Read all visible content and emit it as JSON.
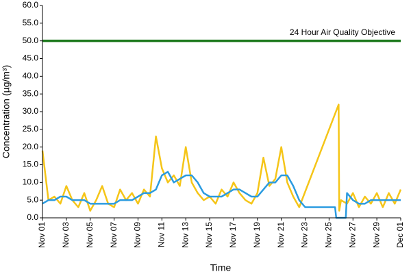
{
  "chart_data": {
    "type": "line",
    "x_label": "Time",
    "y_label": "Concentration (µg/m³)",
    "xlim": [
      1,
      31
    ],
    "xticks": [
      {
        "value": 1,
        "label": "Nov 01"
      },
      {
        "value": 3,
        "label": "Nov 03"
      },
      {
        "value": 5,
        "label": "Nov 05"
      },
      {
        "value": 7,
        "label": "Nov 07"
      },
      {
        "value": 9,
        "label": "Nov 09"
      },
      {
        "value": 11,
        "label": "Nov 11"
      },
      {
        "value": 13,
        "label": "Nov 13"
      },
      {
        "value": 15,
        "label": "Nov 15"
      },
      {
        "value": 17,
        "label": "Nov 17"
      },
      {
        "value": 19,
        "label": "Nov 19"
      },
      {
        "value": 21,
        "label": "Nov 21"
      },
      {
        "value": 23,
        "label": "Nov 23"
      },
      {
        "value": 25,
        "label": "Nov 25"
      },
      {
        "value": 27,
        "label": "Nov 27"
      },
      {
        "value": 29,
        "label": "Nov 29"
      },
      {
        "value": 31,
        "label": "Dec 01"
      }
    ],
    "ylim": [
      0,
      60
    ],
    "yticks": [
      {
        "value": 0,
        "label": "0.0"
      },
      {
        "value": 5,
        "label": "5.0"
      },
      {
        "value": 10,
        "label": "10.0"
      },
      {
        "value": 15,
        "label": "15.0"
      },
      {
        "value": 20,
        "label": "20.0"
      },
      {
        "value": 25,
        "label": "25.0"
      },
      {
        "value": 30,
        "label": "30.0"
      },
      {
        "value": 35,
        "label": "35.0"
      },
      {
        "value": 40,
        "label": "40.0"
      },
      {
        "value": 45,
        "label": "45.0"
      },
      {
        "value": 50,
        "label": "50.0"
      },
      {
        "value": 55,
        "label": "55.0"
      },
      {
        "value": 60,
        "label": "60.0"
      }
    ],
    "grid": false,
    "series": [
      {
        "color": "#f5c518",
        "x": [
          1,
          1.5,
          2,
          2.5,
          3,
          3.5,
          4,
          4.5,
          5,
          5.5,
          6,
          6.5,
          7,
          7.5,
          8,
          8.5,
          9,
          9.5,
          10,
          10.5,
          11,
          11.5,
          12,
          12.5,
          13,
          13.5,
          14,
          14.5,
          15,
          15.5,
          16,
          16.5,
          17,
          17.5,
          18,
          18.5,
          19,
          19.5,
          20,
          20.5,
          21,
          21.5,
          22,
          22.5,
          25.8,
          25.85,
          26,
          26.5,
          27,
          27.5,
          28,
          28.5,
          29,
          29.5,
          30,
          30.5,
          31
        ],
        "values": [
          19,
          5,
          6,
          4,
          9,
          5,
          3,
          7,
          2,
          5,
          9,
          4,
          3,
          8,
          5,
          7,
          4,
          8,
          6,
          23,
          14,
          10,
          12,
          9,
          20,
          10,
          7,
          5,
          6,
          4,
          8,
          6,
          10,
          7,
          5,
          4,
          7,
          17,
          9,
          11,
          20,
          10,
          6,
          3,
          32,
          2,
          5,
          4,
          7,
          3,
          6,
          4,
          7,
          3,
          7,
          4,
          8
        ]
      },
      {
        "color": "#2a9be0",
        "x": [
          1,
          1.5,
          2,
          2.5,
          3,
          3.5,
          4,
          4.5,
          5,
          5.5,
          6,
          6.5,
          7,
          7.5,
          8,
          8.5,
          9,
          9.5,
          10,
          10.5,
          11,
          11.5,
          12,
          12.5,
          13,
          13.5,
          14,
          14.5,
          15,
          15.5,
          16,
          16.5,
          17,
          17.5,
          18,
          18.5,
          19,
          19.5,
          20,
          20.5,
          21,
          21.5,
          22,
          22.5,
          23,
          23.5,
          24,
          24.5,
          25,
          25.5,
          25.6,
          26.4,
          26.5,
          27,
          27.5,
          28,
          28.5,
          29,
          29.5,
          30,
          30.5,
          31
        ],
        "values": [
          4,
          5,
          5,
          6,
          6,
          5,
          5,
          5,
          4,
          4,
          4,
          4,
          4,
          5,
          5,
          5,
          6,
          7,
          7,
          8,
          12,
          13,
          10,
          11,
          12,
          12,
          10,
          7,
          6,
          6,
          6,
          7,
          8,
          8,
          7,
          6,
          6,
          8,
          10,
          10,
          12,
          12,
          9,
          5,
          3,
          3,
          3,
          3,
          3,
          3,
          0,
          0,
          7,
          5,
          4,
          4,
          5,
          5,
          5,
          5,
          5,
          5
        ]
      },
      {
        "name": "24 Hour Air Quality Objective",
        "color": "#1e7a1e",
        "x": [
          1,
          31
        ],
        "values": [
          50,
          50
        ]
      }
    ]
  }
}
